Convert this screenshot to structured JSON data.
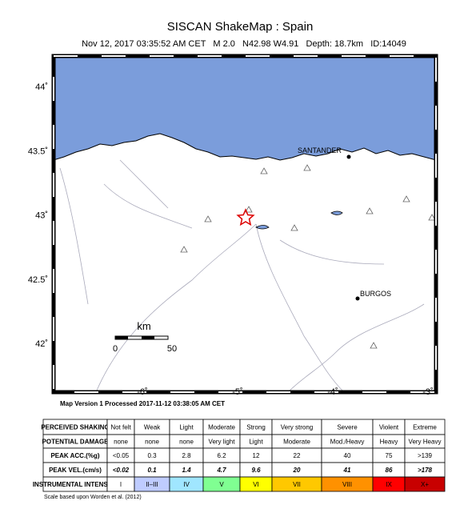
{
  "header": {
    "title": "SISCAN ShakeMap : Spain",
    "subtitle": "Nov 12, 2017 03:35:52 AM CET   M 2.0   N42.98 W4.91   Depth: 18.7km   ID:14049"
  },
  "map": {
    "lat_labels": [
      "44˚",
      "43.5˚",
      "43˚",
      "42.5˚",
      "42˚"
    ],
    "lon_labels": [
      "-6˚",
      "-5˚",
      "-4˚",
      "-3˚"
    ],
    "places": [
      "SANTANDER",
      "BURGOS"
    ],
    "scale": {
      "unit": "km",
      "ticks": [
        "0",
        "50"
      ]
    }
  },
  "footer": {
    "processed": "Map Version 1 Processed 2017-11-12 03:38:05 AM CET",
    "note": "Scale based upon Worden et al. (2012)"
  },
  "legend": {
    "rows": [
      [
        "PERCEIVED SHAKING",
        "Not felt",
        "Weak",
        "Light",
        "Moderate",
        "Strong",
        "Very strong",
        "Severe",
        "Violent",
        "Extreme"
      ],
      [
        "POTENTIAL DAMAGE",
        "none",
        "none",
        "none",
        "Very light",
        "Light",
        "Moderate",
        "Mod./Heavy",
        "Heavy",
        "Very Heavy"
      ],
      [
        "PEAK ACC.(%g)",
        "<0.05",
        "0.3",
        "2.8",
        "6.2",
        "12",
        "22",
        "40",
        "75",
        ">139"
      ],
      [
        "PEAK VEL.(cm/s)",
        "<0.02",
        "0.1",
        "1.4",
        "4.7",
        "9.6",
        "20",
        "41",
        "86",
        ">178"
      ],
      [
        "INSTRUMENTAL INTENSITY",
        "I",
        "II–III",
        "IV",
        "V",
        "VI",
        "VII",
        "VIII",
        "IX",
        "X+"
      ]
    ],
    "colors": [
      "#ffffff",
      "#bfccff",
      "#a0e6ff",
      "#80ff92",
      "#ffff00",
      "#ffc800",
      "#ff9100",
      "#ff0000",
      "#c80000"
    ]
  }
}
